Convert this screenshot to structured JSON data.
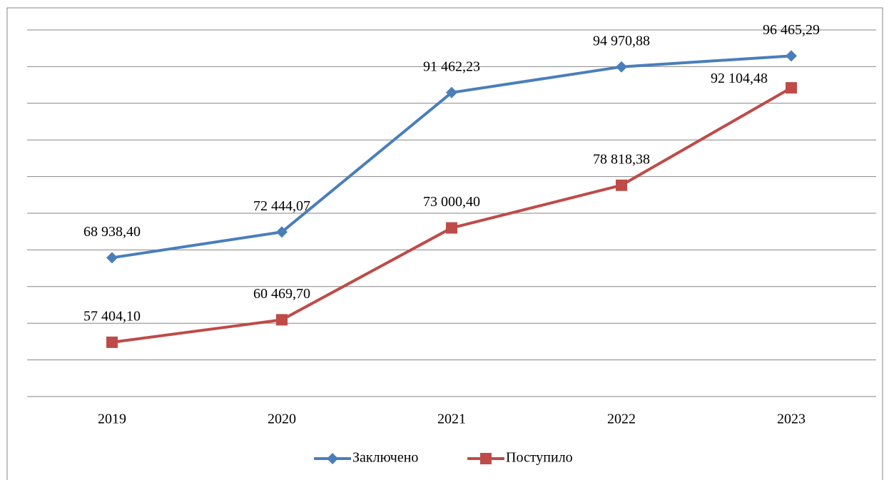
{
  "chart_data": {
    "type": "line",
    "categories": [
      "2019",
      "2020",
      "2021",
      "2022",
      "2023"
    ],
    "series": [
      {
        "name": "Заключено",
        "color": "#4a7ebb",
        "marker": "diamond",
        "values": [
          68938.4,
          72444.07,
          91462.23,
          94970.88,
          96465.29
        ],
        "value_labels": [
          "68 938,40",
          "72 444,07",
          "91 462,23",
          "94 970,88",
          "96 465,29"
        ]
      },
      {
        "name": "Поступило",
        "color": "#be4b48",
        "marker": "square",
        "values": [
          57404.1,
          60469.7,
          73000.4,
          78818.38,
          92104.48
        ],
        "value_labels": [
          "57 404,10",
          "60 469,70",
          "73 000,40",
          "78 818,38",
          "92 104,48"
        ]
      }
    ],
    "ylim": [
      50000,
      100000
    ],
    "yticks": [
      50000,
      55000,
      60000,
      65000,
      70000,
      75000,
      80000,
      85000,
      90000,
      95000,
      100000
    ],
    "grid": true,
    "legend": "bottom"
  }
}
